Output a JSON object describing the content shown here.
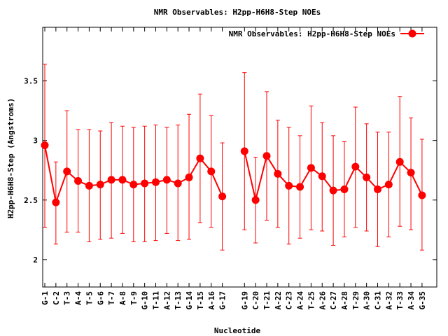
{
  "chart_data": {
    "type": "line",
    "title": "NMR Observables: H2pp-H6H8-Step NOEs",
    "xlabel": "Nucleotide",
    "ylabel": "H2pp-H6H8-Step (Angstroms)",
    "ylim": [
      1.77,
      3.95
    ],
    "yticks": [
      2,
      2.5,
      3,
      3.5
    ],
    "ytick_labels": [
      "2",
      "2.5",
      "3",
      "3.5"
    ],
    "grid": false,
    "legend_position": "top-right",
    "series": [
      {
        "name": "NMR Observables: H2pp-H6H8-Step NOEs",
        "color": "#ff0000",
        "marker": "circle",
        "points": [
          {
            "pos": 1,
            "label": "G-1",
            "y": 2.96,
            "lo": 2.27,
            "hi": 3.64
          },
          {
            "pos": 2,
            "label": "C-2",
            "y": 2.48,
            "lo": 2.13,
            "hi": 2.82
          },
          {
            "pos": 3,
            "label": "T-3",
            "y": 2.74,
            "lo": 2.23,
            "hi": 3.25
          },
          {
            "pos": 4,
            "label": "A-4",
            "y": 2.66,
            "lo": 2.23,
            "hi": 3.09
          },
          {
            "pos": 5,
            "label": "T-5",
            "y": 2.62,
            "lo": 2.15,
            "hi": 3.09
          },
          {
            "pos": 6,
            "label": "G-6",
            "y": 2.63,
            "lo": 2.17,
            "hi": 3.08
          },
          {
            "pos": 7,
            "label": "T-7",
            "y": 2.67,
            "lo": 2.18,
            "hi": 3.15
          },
          {
            "pos": 8,
            "label": "A-8",
            "y": 2.67,
            "lo": 2.22,
            "hi": 3.12
          },
          {
            "pos": 9,
            "label": "T-9",
            "y": 2.63,
            "lo": 2.15,
            "hi": 3.11
          },
          {
            "pos": 10,
            "label": "G-10",
            "y": 2.64,
            "lo": 2.15,
            "hi": 3.12
          },
          {
            "pos": 11,
            "label": "T-11",
            "y": 2.65,
            "lo": 2.16,
            "hi": 3.13
          },
          {
            "pos": 12,
            "label": "A-12",
            "y": 2.67,
            "lo": 2.22,
            "hi": 3.11
          },
          {
            "pos": 13,
            "label": "T-13",
            "y": 2.64,
            "lo": 2.16,
            "hi": 3.13
          },
          {
            "pos": 14,
            "label": "G-14",
            "y": 2.69,
            "lo": 2.17,
            "hi": 3.22
          },
          {
            "pos": 15,
            "label": "T-15",
            "y": 2.85,
            "lo": 2.31,
            "hi": 3.39
          },
          {
            "pos": 16,
            "label": "A-16",
            "y": 2.74,
            "lo": 2.27,
            "hi": 3.21
          },
          {
            "pos": 17,
            "label": "G-17",
            "y": 2.53,
            "lo": 2.08,
            "hi": 2.98
          },
          {
            "pos": 19,
            "label": "G-19",
            "y": 2.91,
            "lo": 2.25,
            "hi": 3.57
          },
          {
            "pos": 20,
            "label": "C-20",
            "y": 2.5,
            "lo": 2.14,
            "hi": 2.86
          },
          {
            "pos": 21,
            "label": "T-21",
            "y": 2.87,
            "lo": 2.33,
            "hi": 3.41
          },
          {
            "pos": 22,
            "label": "A-22",
            "y": 2.72,
            "lo": 2.27,
            "hi": 3.17
          },
          {
            "pos": 23,
            "label": "C-23",
            "y": 2.62,
            "lo": 2.13,
            "hi": 3.11
          },
          {
            "pos": 24,
            "label": "A-24",
            "y": 2.61,
            "lo": 2.18,
            "hi": 3.04
          },
          {
            "pos": 25,
            "label": "T-25",
            "y": 2.77,
            "lo": 2.25,
            "hi": 3.29
          },
          {
            "pos": 26,
            "label": "A-26",
            "y": 2.7,
            "lo": 2.24,
            "hi": 3.15
          },
          {
            "pos": 27,
            "label": "C-27",
            "y": 2.58,
            "lo": 2.12,
            "hi": 3.04
          },
          {
            "pos": 28,
            "label": "A-28",
            "y": 2.59,
            "lo": 2.19,
            "hi": 2.99
          },
          {
            "pos": 29,
            "label": "T-29",
            "y": 2.78,
            "lo": 2.27,
            "hi": 3.28
          },
          {
            "pos": 30,
            "label": "A-30",
            "y": 2.69,
            "lo": 2.24,
            "hi": 3.14
          },
          {
            "pos": 31,
            "label": "C-31",
            "y": 2.59,
            "lo": 2.11,
            "hi": 3.07
          },
          {
            "pos": 32,
            "label": "A-32",
            "y": 2.63,
            "lo": 2.19,
            "hi": 3.07
          },
          {
            "pos": 33,
            "label": "T-33",
            "y": 2.82,
            "lo": 2.28,
            "hi": 3.37
          },
          {
            "pos": 34,
            "label": "A-34",
            "y": 2.73,
            "lo": 2.25,
            "hi": 3.19
          },
          {
            "pos": 35,
            "label": "G-35",
            "y": 2.54,
            "lo": 2.08,
            "hi": 3.01
          }
        ]
      }
    ]
  }
}
